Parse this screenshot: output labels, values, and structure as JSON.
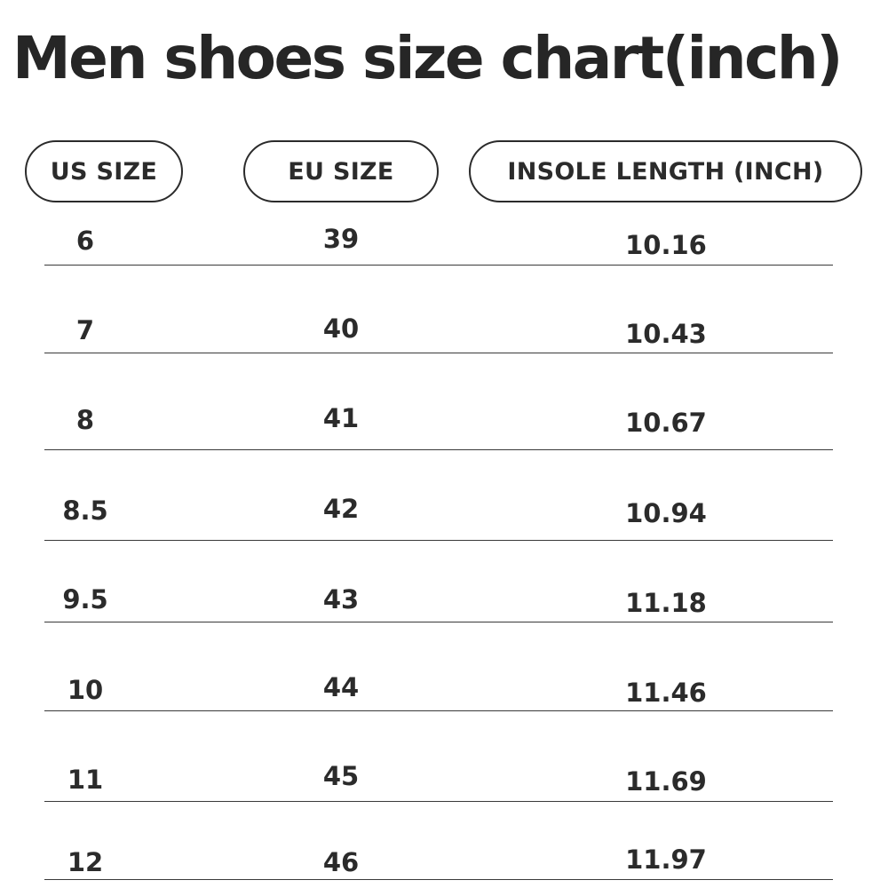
{
  "title": "Men shoes size chart(inch)",
  "headers": {
    "us": "US SIZE",
    "eu": "EU SIZE",
    "insole": "INSOLE LENGTH (INCH)"
  },
  "rows": [
    {
      "us": "6",
      "eu": "39",
      "insole": "10.16"
    },
    {
      "us": "7",
      "eu": "40",
      "insole": "10.43"
    },
    {
      "us": "8",
      "eu": "41",
      "insole": "10.67"
    },
    {
      "us": "8.5",
      "eu": "42",
      "insole": "10.94"
    },
    {
      "us": "9.5",
      "eu": "43",
      "insole": "11.18"
    },
    {
      "us": "10",
      "eu": "44",
      "insole": "11.46"
    },
    {
      "us": "11",
      "eu": "45",
      "insole": "11.69"
    },
    {
      "us": "12",
      "eu": "46",
      "insole": "11.97"
    }
  ]
}
